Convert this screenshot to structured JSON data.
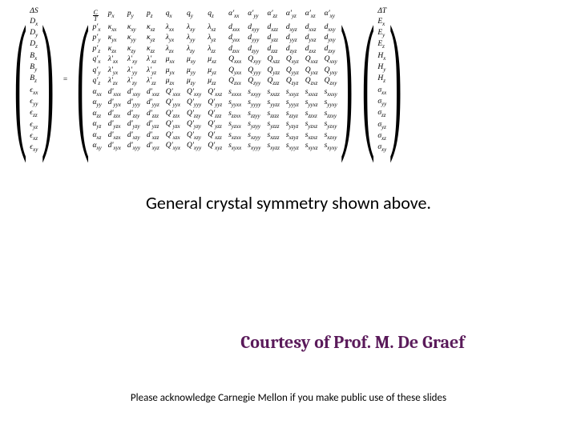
{
  "left_vector": [
    "ΔS",
    "D<sub>x</sub>",
    "D<sub>y</sub>",
    "D<sub>z</sub>",
    "B<sub>x</sub>",
    "B<sub>y</sub>",
    "B<sub>z</sub>",
    "ϵ<sub>xx</sub>",
    "ϵ<sub>yy</sub>",
    "ϵ<sub>zz</sub>",
    "ϵ<sub>yz</sub>",
    "ϵ<sub>xz</sub>",
    "ϵ<sub>xy</sub>"
  ],
  "right_vector": [
    "ΔT",
    "E<sub>x</sub>",
    "E<sub>y</sub>",
    "E<sub>z</sub>",
    "H<sub>x</sub>",
    "H<sub>y</sub>",
    "H<sub>z</sub>",
    "σ<sub>xx</sub>",
    "σ<sub>yy</sub>",
    "σ<sub>zz</sub>",
    "σ<sub>yz</sub>",
    "σ<sub>xz</sub>",
    "σ<sub>xy</sub>"
  ],
  "matrix": [
    [
      "<span class=frac><span class=n>C</span><span>T</span></span>",
      "p<sub>x</sub>",
      "p<sub>y</sub>",
      "p<sub>z</sub>",
      "q<sub>x</sub>",
      "q<sub>y</sub>",
      "q<sub>z</sub>",
      "α'<sub>xx</sub>",
      "α'<sub>yy</sub>",
      "α'<sub>zz</sub>",
      "α'<sub>yz</sub>",
      "α'<sub>xz</sub>",
      "α'<sub>xy</sub>"
    ],
    [
      "p'<sub>x</sub>",
      "κ<sub>xx</sub>",
      "κ<sub>xy</sub>",
      "κ<sub>xz</sub>",
      "λ<sub>xx</sub>",
      "λ<sub>xy</sub>",
      "λ<sub>xz</sub>",
      "d<sub>xxx</sub>",
      "d<sub>xyy</sub>",
      "d<sub>xzz</sub>",
      "d<sub>xyz</sub>",
      "d<sub>xxz</sub>",
      "d<sub>xxy</sub>"
    ],
    [
      "p'<sub>y</sub>",
      "κ<sub>yx</sub>",
      "κ<sub>yy</sub>",
      "κ<sub>yz</sub>",
      "λ<sub>yx</sub>",
      "λ<sub>yy</sub>",
      "λ<sub>yz</sub>",
      "d<sub>yxx</sub>",
      "d<sub>yyy</sub>",
      "d<sub>yzz</sub>",
      "d<sub>yyz</sub>",
      "d<sub>yxz</sub>",
      "d<sub>yxy</sub>"
    ],
    [
      "p'<sub>z</sub>",
      "κ<sub>zx</sub>",
      "κ<sub>zy</sub>",
      "κ<sub>zz</sub>",
      "λ<sub>zx</sub>",
      "λ<sub>zy</sub>",
      "λ<sub>zz</sub>",
      "d<sub>zxx</sub>",
      "d<sub>zyy</sub>",
      "d<sub>zzz</sub>",
      "d<sub>zyz</sub>",
      "d<sub>zxz</sub>",
      "d<sub>zxy</sub>"
    ],
    [
      "q'<sub>x</sub>",
      "λ'<sub>xx</sub>",
      "λ'<sub>xy</sub>",
      "λ'<sub>xz</sub>",
      "μ<sub>xx</sub>",
      "μ<sub>xy</sub>",
      "μ<sub>xz</sub>",
      "Q<sub>xxx</sub>",
      "Q<sub>xyy</sub>",
      "Q<sub>xzz</sub>",
      "Q<sub>xyz</sub>",
      "Q<sub>xxz</sub>",
      "Q<sub>xxy</sub>"
    ],
    [
      "q'<sub>y</sub>",
      "λ'<sub>yx</sub>",
      "λ'<sub>yy</sub>",
      "λ'<sub>yz</sub>",
      "μ<sub>yx</sub>",
      "μ<sub>yy</sub>",
      "μ<sub>yz</sub>",
      "Q<sub>yxx</sub>",
      "Q<sub>yyy</sub>",
      "Q<sub>yzz</sub>",
      "Q<sub>yyz</sub>",
      "Q<sub>yxz</sub>",
      "Q<sub>yxy</sub>"
    ],
    [
      "q'<sub>z</sub>",
      "λ'<sub>zx</sub>",
      "λ'<sub>zy</sub>",
      "λ'<sub>zz</sub>",
      "μ<sub>zx</sub>",
      "μ<sub>zy</sub>",
      "μ<sub>zz</sub>",
      "Q<sub>zxx</sub>",
      "Q<sub>zyy</sub>",
      "Q<sub>zzz</sub>",
      "Q<sub>zyz</sub>",
      "Q<sub>zxz</sub>",
      "Q<sub>zxy</sub>"
    ],
    [
      "α<sub>xx</sub>",
      "d'<sub>xxx</sub>",
      "d'<sub>xxy</sub>",
      "d'<sub>xxz</sub>",
      "Q'<sub>xxx</sub>",
      "Q'<sub>xxy</sub>",
      "Q'<sub>xxz</sub>",
      "s<sub>xxxx</sub>",
      "s<sub>xxyy</sub>",
      "s<sub>xxzz</sub>",
      "s<sub>xxyz</sub>",
      "s<sub>xxxz</sub>",
      "s<sub>xxxy</sub>"
    ],
    [
      "α<sub>yy</sub>",
      "d'<sub>yyx</sub>",
      "d'<sub>yyy</sub>",
      "d'<sub>yyz</sub>",
      "Q'<sub>yyx</sub>",
      "Q'<sub>yyy</sub>",
      "Q'<sub>yyz</sub>",
      "s<sub>yyxx</sub>",
      "s<sub>yyyy</sub>",
      "s<sub>yyzz</sub>",
      "s<sub>yyyz</sub>",
      "s<sub>yyxz</sub>",
      "s<sub>yyxy</sub>"
    ],
    [
      "α<sub>zz</sub>",
      "d'<sub>zzx</sub>",
      "d'<sub>zzy</sub>",
      "d'<sub>zzz</sub>",
      "Q'<sub>zzx</sub>",
      "Q'<sub>zzy</sub>",
      "Q'<sub>zzz</sub>",
      "s<sub>zzxx</sub>",
      "s<sub>zzyy</sub>",
      "s<sub>zzzz</sub>",
      "s<sub>zzyz</sub>",
      "s<sub>zzxz</sub>",
      "s<sub>zzxy</sub>"
    ],
    [
      "α<sub>yz</sub>",
      "d'<sub>yzx</sub>",
      "d'<sub>yzy</sub>",
      "d'<sub>yzz</sub>",
      "Q'<sub>yzx</sub>",
      "Q'<sub>yzy</sub>",
      "Q'<sub>yzz</sub>",
      "s<sub>yzxx</sub>",
      "s<sub>yzyy</sub>",
      "s<sub>yzzz</sub>",
      "s<sub>yzyz</sub>",
      "s<sub>yzxz</sub>",
      "s<sub>yzxy</sub>"
    ],
    [
      "α<sub>xz</sub>",
      "d'<sub>xzx</sub>",
      "d'<sub>xzy</sub>",
      "d'<sub>xzz</sub>",
      "Q'<sub>xzx</sub>",
      "Q'<sub>xzy</sub>",
      "Q'<sub>xzz</sub>",
      "s<sub>xzxx</sub>",
      "s<sub>xzyy</sub>",
      "s<sub>xzzz</sub>",
      "s<sub>xzyz</sub>",
      "s<sub>xzxz</sub>",
      "s<sub>xzxy</sub>"
    ],
    [
      "α<sub>xy</sub>",
      "d'<sub>xyx</sub>",
      "d'<sub>xyy</sub>",
      "d'<sub>xyz</sub>",
      "Q'<sub>xyx</sub>",
      "Q'<sub>xyy</sub>",
      "Q'<sub>xyz</sub>",
      "s<sub>xyxx</sub>",
      "s<sub>xyyy</sub>",
      "s<sub>xyzz</sub>",
      "s<sub>xyyz</sub>",
      "s<sub>xyxz</sub>",
      "s<sub>xyxy</sub>"
    ]
  ],
  "caption": "General crystal symmetry shown above.",
  "courtesy": "Courtesy of Prof. M. De Graef",
  "acknowledge": "Please acknowledge Carnegie Mellon if you make public use of these slides",
  "colors": {
    "text": "#000000",
    "courtesy": "#5a1a5a",
    "background": "#ffffff"
  },
  "fonts": {
    "math": "Times New Roman, serif",
    "caption": "Calibri, Arial, sans-serif",
    "courtesy": "Cambria, Times New Roman, serif"
  }
}
